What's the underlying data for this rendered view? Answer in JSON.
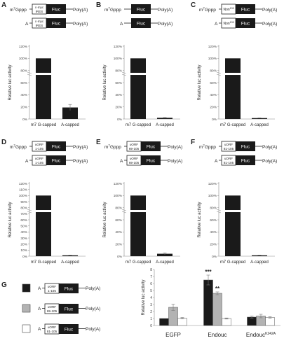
{
  "panels": [
    {
      "letter": "A",
      "construct_type": "ires",
      "box_label_1": "c-myc",
      "box_label_2": "IRES",
      "superscript": "",
      "fluc": "Fluc",
      "tail": "Poly(A)",
      "cap_m7": "m",
      "cap_m7_sup": "7",
      "cap_m7_rest": "Gppp",
      "cap_a": "A"
    },
    {
      "letter": "B",
      "construct_type": "none",
      "box_label_1": "",
      "box_label_2": "",
      "superscript": "",
      "fluc": "Fluc",
      "tail": "Poly(A)",
      "cap_m7": "m",
      "cap_m7_sup": "7",
      "cap_m7_rest": "Gppp",
      "cap_a": "A"
    },
    {
      "letter": "C",
      "construct_type": "non",
      "box_label_1": "Non",
      "box_label_2": "",
      "superscript": "105",
      "fluc": "Fluc",
      "tail": "Poly(A)",
      "cap_m7": "m",
      "cap_m7_sup": "7",
      "cap_m7_rest": "Gppp",
      "cap_a": "A"
    },
    {
      "letter": "D",
      "construct_type": "uorf",
      "box_label_1": "uORF",
      "box_label_2": "1-105",
      "superscript": "",
      "fluc": "Fluc",
      "tail": "Poly(A)",
      "cap_m7": "m",
      "cap_m7_sup": "7",
      "cap_m7_rest": "Gppp",
      "cap_a": "A"
    },
    {
      "letter": "E",
      "construct_type": "uorf",
      "box_label_1": "uORF",
      "box_label_2": "69-105",
      "superscript": "",
      "fluc": "Fluc",
      "tail": "Poly(A)",
      "cap_m7": "m",
      "cap_m7_sup": "7",
      "cap_m7_rest": "Gppp",
      "cap_a": "A"
    },
    {
      "letter": "F",
      "construct_type": "uorf",
      "box_label_1": "uORF",
      "box_label_2": "81-105",
      "superscript": "",
      "fluc": "Fluc",
      "tail": "Poly(A)",
      "cap_m7": "m",
      "cap_m7_sup": "7",
      "cap_m7_rest": "Gppp",
      "cap_a": "A"
    }
  ],
  "panel_g": {
    "letter": "G",
    "legend": [
      {
        "swatch": "#1a1a1a",
        "cap": "A",
        "box_label_1": "uORF",
        "box_label_2": "1-105",
        "fluc": "Fluc",
        "tail": "Poly(A)"
      },
      {
        "swatch": "#b3b3b3",
        "cap": "A",
        "box_label_1": "uORF",
        "box_label_2": "69-105",
        "fluc": "Fluc",
        "tail": "Poly(A)"
      },
      {
        "swatch": "#ffffff",
        "cap": "A",
        "box_label_1": "uORF",
        "box_label_2": "81-105",
        "fluc": "Fluc",
        "tail": "Poly(A)"
      }
    ]
  },
  "chart_data": [
    {
      "type": "bar",
      "panel": "A",
      "categories": [
        "m7 G-capped",
        "A-capped"
      ],
      "values": [
        100,
        19
      ],
      "errors": [
        0,
        5
      ],
      "ylabel": "Relative luc activity",
      "ylim": [
        0,
        120
      ],
      "yticks": [
        "0%",
        "20%",
        "40%",
        "60%",
        "80%",
        "100%",
        "120%"
      ],
      "axis_break": true,
      "bar_color": "#1a1a1a"
    },
    {
      "type": "bar",
      "panel": "B",
      "categories": [
        "m7 G-capped",
        "A-capped"
      ],
      "values": [
        100,
        2
      ],
      "errors": [
        0,
        0.5
      ],
      "ylabel": "Relative luc activity",
      "ylim": [
        0,
        120
      ],
      "yticks": [
        "0%",
        "20%",
        "40%",
        "60%",
        "80%",
        "100%",
        "120%"
      ],
      "axis_break": true,
      "bar_color": "#1a1a1a"
    },
    {
      "type": "bar",
      "panel": "C",
      "categories": [
        "m7 G-capped",
        "A-capped"
      ],
      "values": [
        100,
        1.5
      ],
      "errors": [
        0,
        0.4
      ],
      "ylabel": "Relative luc activity",
      "ylim": [
        0,
        120
      ],
      "yticks": [
        "0%",
        "20%",
        "40%",
        "60%",
        "80%",
        "100%",
        "120%"
      ],
      "axis_break": true,
      "bar_color": "#1a1a1a"
    },
    {
      "type": "bar",
      "panel": "D",
      "categories": [
        "m7 G-capped",
        "A-capped"
      ],
      "values": [
        100,
        1.5
      ],
      "errors": [
        0,
        0.4
      ],
      "ylabel": "Relative luc activity",
      "ylim": [
        0,
        120
      ],
      "yticks": [
        "0%",
        "10%",
        "20%",
        "30%",
        "40%",
        "50%",
        "60%",
        "70%",
        "80%",
        "90%",
        "100%",
        "110%",
        "120%"
      ],
      "axis_break": true,
      "bar_color": "#1a1a1a"
    },
    {
      "type": "bar",
      "panel": "E",
      "categories": [
        "m7 G-capped",
        "A-capped"
      ],
      "values": [
        100,
        4
      ],
      "errors": [
        0,
        1.5
      ],
      "ylabel": "Relative luc activity",
      "ylim": [
        0,
        120
      ],
      "yticks": [
        "0%",
        "20%",
        "40%",
        "60%",
        "80%",
        "100%",
        "120%"
      ],
      "axis_break": true,
      "bar_color": "#1a1a1a"
    },
    {
      "type": "bar",
      "panel": "F",
      "categories": [
        "m7 G-capped",
        "A-capped"
      ],
      "values": [
        100,
        1.5
      ],
      "errors": [
        0,
        0.4
      ],
      "ylabel": "Relative luc activity",
      "ylim": [
        0,
        120
      ],
      "yticks": [
        "0%",
        "20%",
        "40%",
        "60%",
        "80%",
        "100%",
        "120%"
      ],
      "axis_break": true,
      "bar_color": "#1a1a1a"
    },
    {
      "type": "bar",
      "panel": "G",
      "categories": [
        "EGFP",
        "Endouc",
        "EndoucK242A"
      ],
      "category_display": [
        {
          "text": "EGFP",
          "sup": ""
        },
        {
          "text": "Endouc",
          "sup": ""
        },
        {
          "text": "Endouc",
          "sup": "K242A"
        }
      ],
      "series": [
        {
          "color": "#1a1a1a",
          "values": [
            1,
            6.5,
            1.2
          ],
          "errors": [
            0,
            0.7,
            0.15
          ]
        },
        {
          "color": "#b3b3b3",
          "values": [
            2.6,
            4.6,
            1.35
          ],
          "errors": [
            0.45,
            0.2,
            0.25
          ]
        },
        {
          "color": "#ffffff",
          "values": [
            1.05,
            1.0,
            1.15
          ],
          "errors": [
            0.1,
            0.08,
            0.12
          ]
        }
      ],
      "annotations": [
        {
          "category": 1,
          "series": 0,
          "text": "***"
        },
        {
          "category": 1,
          "series": 1,
          "text": "**"
        }
      ],
      "ylabel": "Relative luc activity",
      "ylim": [
        0,
        8
      ],
      "yticks": [
        "0",
        "1",
        "2",
        "3",
        "4",
        "5",
        "6",
        "7",
        "8"
      ]
    }
  ]
}
